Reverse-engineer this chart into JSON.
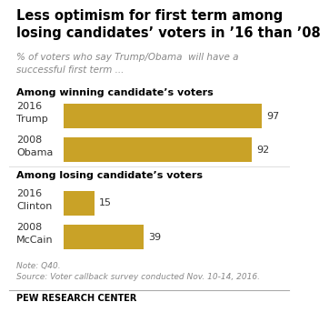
{
  "title_line1": "Less optimism for first term among",
  "title_line2": "losing candidates’ voters in ’16 than ’08",
  "subtitle_line1": "% of voters who say Trump/Obama  will have a",
  "subtitle_line2": "successful first term ...",
  "section1_label": "Among winning candidate’s voters",
  "section2_label": "Among losing candidate’s voters",
  "bars": [
    {
      "label1": "2016",
      "label2": "Trump",
      "value": 97,
      "section": 1
    },
    {
      "label1": "2008",
      "label2": "Obama",
      "value": 92,
      "section": 1
    },
    {
      "label1": "2016",
      "label2": "Clinton",
      "value": 15,
      "section": 2
    },
    {
      "label1": "2008",
      "label2": "McCain",
      "value": 39,
      "section": 2
    }
  ],
  "bar_color": "#C9A227",
  "max_value": 100,
  "note": "Note: Q40.",
  "source": "Source: Voter callback survey conducted Nov. 10-14, 2016.",
  "footer": "PEW RESEARCH CENTER",
  "bg_color": "#FFFFFF",
  "title_color": "#000000",
  "subtitle_color": "#888888",
  "section_label_color": "#000000",
  "label_color": "#333333",
  "note_color": "#888888",
  "footer_color": "#000000",
  "footer_line_color": "#AAAAAA"
}
